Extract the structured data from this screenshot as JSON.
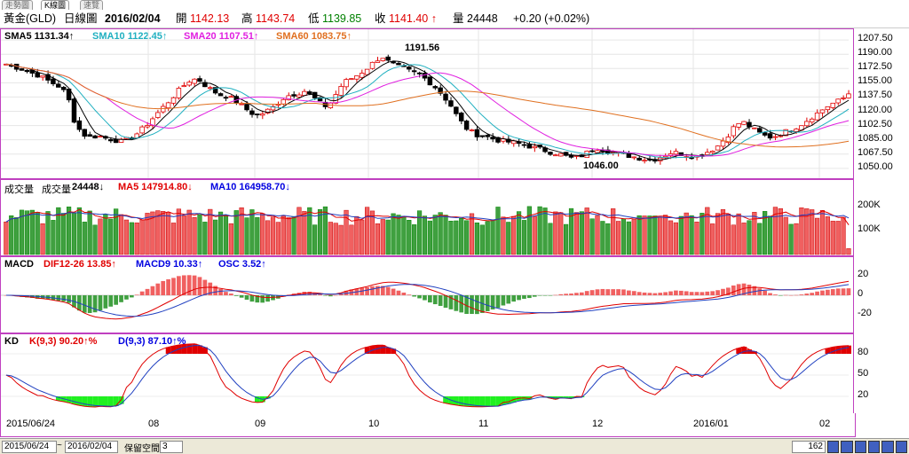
{
  "tabs": [
    "走勢圖",
    "K線圖",
    "速覽"
  ],
  "header": {
    "symbol": "黃金(GLD)",
    "view": "日線圖",
    "date": "2016/02/04",
    "open_label": "開",
    "open": "1142.13",
    "high_label": "高",
    "high": "1143.74",
    "low_label": "低",
    "low": "1139.85",
    "close_label": "收",
    "close": "1141.40 ↑",
    "vol_label": "量",
    "vol": "24448",
    "change": "+0.20 (+0.02%)"
  },
  "price_panel": {
    "sma5": "SMA5 1131.34↑",
    "sma10": "SMA10 1122.45↑",
    "sma20": "SMA20 1107.51↑",
    "sma60": "SMA60 1083.75↑",
    "ticks": [
      "1207.50",
      "1190.00",
      "1172.50",
      "1155.00",
      "1137.50",
      "1120.00",
      "1102.50",
      "1085.00",
      "1067.50",
      "1050.00"
    ],
    "annot_high": "1191.56",
    "annot_low": "1046.00"
  },
  "volume_panel": {
    "label": "成交量",
    "vol_label": "成交量",
    "vol": "24448↓",
    "ma5": "MA5 147914.80↓",
    "ma10": "MA10 164958.70↓",
    "ticks": [
      "200K",
      "100K"
    ]
  },
  "macd_panel": {
    "label": "MACD",
    "dif": "DIF12-26 13.85↑",
    "macd": "MACD9 10.33↑",
    "osc": "OSC 3.52↑",
    "ticks": [
      "20",
      "0",
      "-20"
    ]
  },
  "kd_panel": {
    "label": "KD",
    "k": "K(9,3) 90.20↑%",
    "d": "D(9,3) 87.10↑%",
    "ticks": [
      "80",
      "50",
      "20"
    ]
  },
  "x_axis": {
    "labels": [
      "2015/06/24",
      "08",
      "09",
      "10",
      "11",
      "12",
      "2016/01",
      "02"
    ]
  },
  "bottom": {
    "start": "2015/06/24",
    "sep": "~",
    "end": "2016/02/04",
    "keep": "保留空間",
    "keep_val": "3",
    "count": "162"
  },
  "chart_data": {
    "type": "candlestick",
    "n_bars": 162,
    "price_range": [
      1040,
      1212
    ],
    "sma5": 1131.34,
    "sma10": 1122.45,
    "sma20": 1107.51,
    "sma60": 1083.75,
    "high_annotation": 1191.56,
    "low_annotation": 1046.0,
    "close_path": [
      1178,
      1175,
      1172,
      1168,
      1165,
      1160,
      1155,
      1150,
      1140,
      1105,
      1092,
      1088,
      1090,
      1087,
      1085,
      1083,
      1086,
      1092,
      1100,
      1110,
      1120,
      1130,
      1140,
      1150,
      1158,
      1160,
      1152,
      1145,
      1140,
      1138,
      1132,
      1125,
      1118,
      1115,
      1120,
      1126,
      1135,
      1140,
      1142,
      1145,
      1138,
      1130,
      1125,
      1140,
      1155,
      1160,
      1165,
      1172,
      1180,
      1188,
      1180,
      1175,
      1172,
      1168,
      1165,
      1158,
      1150,
      1140,
      1128,
      1112,
      1100,
      1093,
      1090,
      1088,
      1085,
      1083,
      1082,
      1080,
      1078,
      1075,
      1073,
      1070,
      1068,
      1065,
      1062,
      1065,
      1070,
      1075,
      1073,
      1070,
      1068,
      1066,
      1064,
      1062,
      1060,
      1062,
      1066,
      1070,
      1068,
      1066,
      1064,
      1068,
      1072,
      1078,
      1088,
      1100,
      1108,
      1102,
      1095,
      1090,
      1088,
      1092,
      1096,
      1100,
      1105,
      1112,
      1118,
      1125,
      1130,
      1134,
      1141
    ],
    "volume_max": 250000,
    "macd_range": [
      -35,
      35
    ],
    "kd_range": [
      0,
      100
    ]
  }
}
